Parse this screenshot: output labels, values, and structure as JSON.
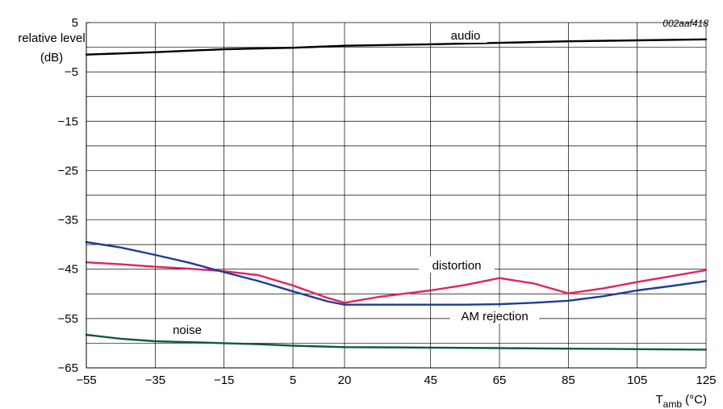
{
  "chart_data": {
    "type": "line",
    "code": "002aaf418",
    "ylabel_line1": "relative level",
    "ylabel_line2": "(dB)",
    "xlabel_main": "T",
    "xlabel_sub": "amb",
    "xlabel_unit": " (°C)",
    "xlim": [
      -55,
      125
    ],
    "ylim": [
      -65,
      5
    ],
    "x_ticks": [
      -55,
      -35,
      -15,
      5,
      20,
      45,
      65,
      85,
      105,
      125
    ],
    "x_tick_labels": [
      "−55",
      "−35",
      "−15",
      "5",
      "20",
      "45",
      "65",
      "85",
      "105",
      "125"
    ],
    "y_ticks": [
      5,
      -5,
      -15,
      -25,
      -35,
      -45,
      -55,
      -65
    ],
    "y_tick_labels": [
      "5",
      "−5",
      "−15",
      "−25",
      "−35",
      "−45",
      "−55",
      "−65"
    ],
    "grid": true,
    "colors": {
      "audio": "#000000",
      "distortion": "#e0245e",
      "am_rejection": "#1f3c96",
      "noise": "#0e5a3c",
      "grid": "#000000"
    },
    "series": [
      {
        "name": "audio",
        "key": "audio",
        "x": [
          -55,
          -35,
          -15,
          5,
          20,
          45,
          65,
          85,
          105,
          125
        ],
        "y": [
          -1.5,
          -1.0,
          -0.4,
          -0.1,
          0.3,
          0.6,
          0.9,
          1.2,
          1.4,
          1.6
        ]
      },
      {
        "name": "distortion",
        "key": "distortion",
        "x": [
          -55,
          -45,
          -35,
          -25,
          -15,
          -5,
          5,
          15,
          20,
          30,
          45,
          55,
          65,
          75,
          85,
          95,
          105,
          115,
          125
        ],
        "y": [
          -43.6,
          -44.0,
          -44.5,
          -44.9,
          -45.4,
          -46.2,
          -48.3,
          -50.8,
          -51.8,
          -50.6,
          -49.3,
          -48.2,
          -46.8,
          -47.9,
          -49.9,
          -48.9,
          -47.6,
          -46.4,
          -45.2
        ]
      },
      {
        "name": "AM rejection",
        "key": "am_rejection",
        "x": [
          -55,
          -45,
          -35,
          -25,
          -15,
          -5,
          5,
          15,
          20,
          30,
          45,
          55,
          65,
          75,
          85,
          95,
          105,
          115,
          125
        ],
        "y": [
          -39.5,
          -40.6,
          -42.1,
          -43.7,
          -45.6,
          -47.4,
          -49.5,
          -51.5,
          -52.2,
          -52.2,
          -52.2,
          -52.2,
          -52.1,
          -51.8,
          -51.4,
          -50.5,
          -49.3,
          -48.4,
          -47.4
        ]
      },
      {
        "name": "noise",
        "key": "noise",
        "x": [
          -55,
          -45,
          -35,
          -25,
          -15,
          -5,
          5,
          20,
          45,
          65,
          85,
          105,
          125
        ],
        "y": [
          -58.3,
          -59.1,
          -59.6,
          -59.8,
          -60.0,
          -60.2,
          -60.5,
          -60.8,
          -60.9,
          -61.0,
          -61.1,
          -61.2,
          -61.3
        ]
      }
    ],
    "annotations": {
      "audio": "audio",
      "distortion": "distortion",
      "am_rejection": "AM rejection",
      "noise": "noise"
    }
  }
}
